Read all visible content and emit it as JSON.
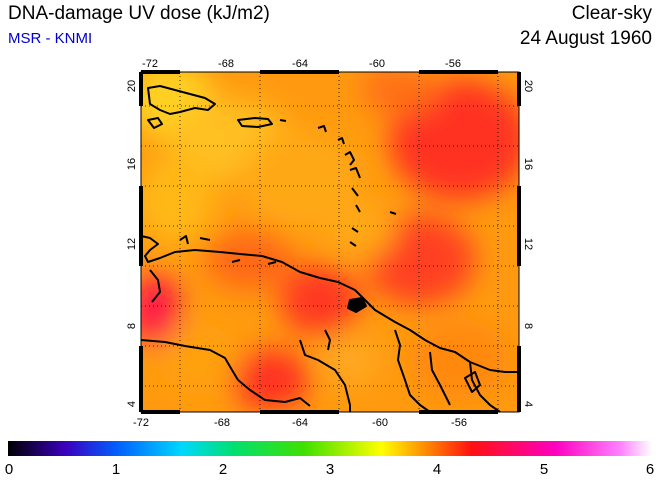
{
  "header": {
    "title": "DNA-damage UV dose (kJ/m2)",
    "source": "MSR - KNMI",
    "condition": "Clear-sky",
    "date": "24 August 1960"
  },
  "map": {
    "lon_range": [
      -72,
      -53
    ],
    "lat_range": [
      3.5,
      20.5
    ],
    "lon_ticks": [
      -72,
      -68,
      -64,
      -60,
      -56
    ],
    "lat_ticks": [
      4,
      8,
      12,
      16,
      20
    ],
    "lon_tick_labels": [
      "-72",
      "-68",
      "-64",
      "-60",
      "-56"
    ],
    "lat_tick_labels": [
      "4",
      "8",
      "12",
      "16",
      "20"
    ],
    "grid": "dotted",
    "coastline_color": "#000000"
  },
  "colorbar": {
    "min": 0,
    "max": 6,
    "tick_labels": [
      "0",
      "1",
      "2",
      "3",
      "4",
      "5",
      "6"
    ],
    "colors": [
      "#000000",
      "#3b00c0",
      "#0060ff",
      "#00d8ff",
      "#00e070",
      "#40e000",
      "#ffff00",
      "#ff9900",
      "#ff1010",
      "#ff00c0",
      "#ff80ff",
      "#ffffff"
    ]
  }
}
